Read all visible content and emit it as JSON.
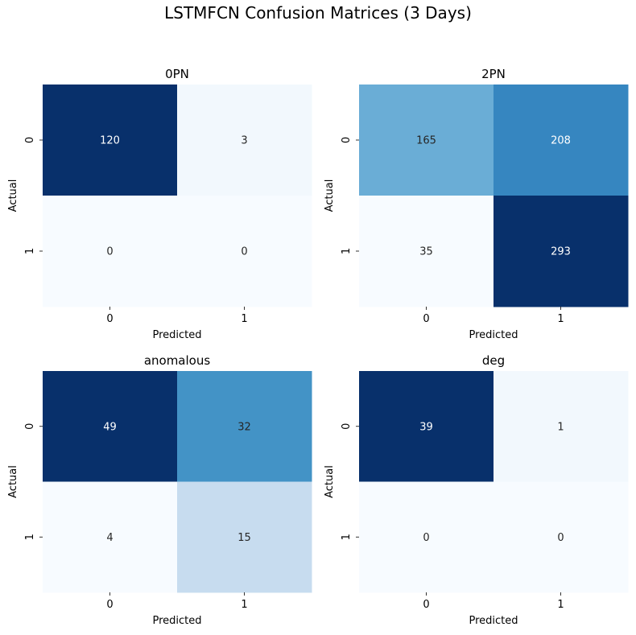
{
  "figure": {
    "title": "LSTMFCN Confusion Matrices (3 Days)"
  },
  "chart_data": [
    {
      "type": "heatmap",
      "title": "0PN",
      "xlabel": "Predicted",
      "ylabel": "Actual",
      "x_categories": [
        "0",
        "1"
      ],
      "y_categories": [
        "0",
        "1"
      ],
      "values": [
        [
          120,
          3
        ],
        [
          0,
          0
        ]
      ],
      "colormap": "Blues",
      "colorbar": false,
      "annotations": true
    },
    {
      "type": "heatmap",
      "title": "2PN",
      "xlabel": "Predicted",
      "ylabel": "Actual",
      "x_categories": [
        "0",
        "1"
      ],
      "y_categories": [
        "0",
        "1"
      ],
      "values": [
        [
          165,
          208
        ],
        [
          35,
          293
        ]
      ],
      "colormap": "Blues",
      "colorbar": false,
      "annotations": true
    },
    {
      "type": "heatmap",
      "title": "anomalous",
      "xlabel": "Predicted",
      "ylabel": "Actual",
      "x_categories": [
        "0",
        "1"
      ],
      "y_categories": [
        "0",
        "1"
      ],
      "values": [
        [
          49,
          32
        ],
        [
          4,
          15
        ]
      ],
      "colormap": "Blues",
      "colorbar": false,
      "annotations": true
    },
    {
      "type": "heatmap",
      "title": "deg",
      "xlabel": "Predicted",
      "ylabel": "Actual",
      "x_categories": [
        "0",
        "1"
      ],
      "y_categories": [
        "0",
        "1"
      ],
      "values": [
        [
          39,
          1
        ],
        [
          0,
          0
        ]
      ],
      "colormap": "Blues",
      "colorbar": false,
      "annotations": true
    }
  ]
}
